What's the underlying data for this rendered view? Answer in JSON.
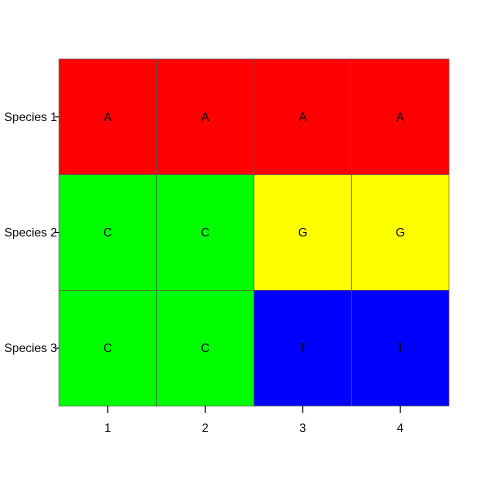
{
  "chart_data": {
    "type": "heatmap",
    "title": "",
    "xlabel": "",
    "ylabel": "",
    "x_categories": [
      "1",
      "2",
      "3",
      "4"
    ],
    "y_categories": [
      "Species 1",
      "Species 2",
      "Species 3"
    ],
    "cells": [
      [
        "A",
        "A",
        "A",
        "A"
      ],
      [
        "C",
        "C",
        "G",
        "G"
      ],
      [
        "C",
        "C",
        "T",
        "T"
      ]
    ],
    "color_map": {
      "A": "#ff0000",
      "C": "#00ff00",
      "G": "#ffff00",
      "T": "#0000ff"
    },
    "grid_line_color": "#555555",
    "grid": true,
    "legend": "none"
  }
}
